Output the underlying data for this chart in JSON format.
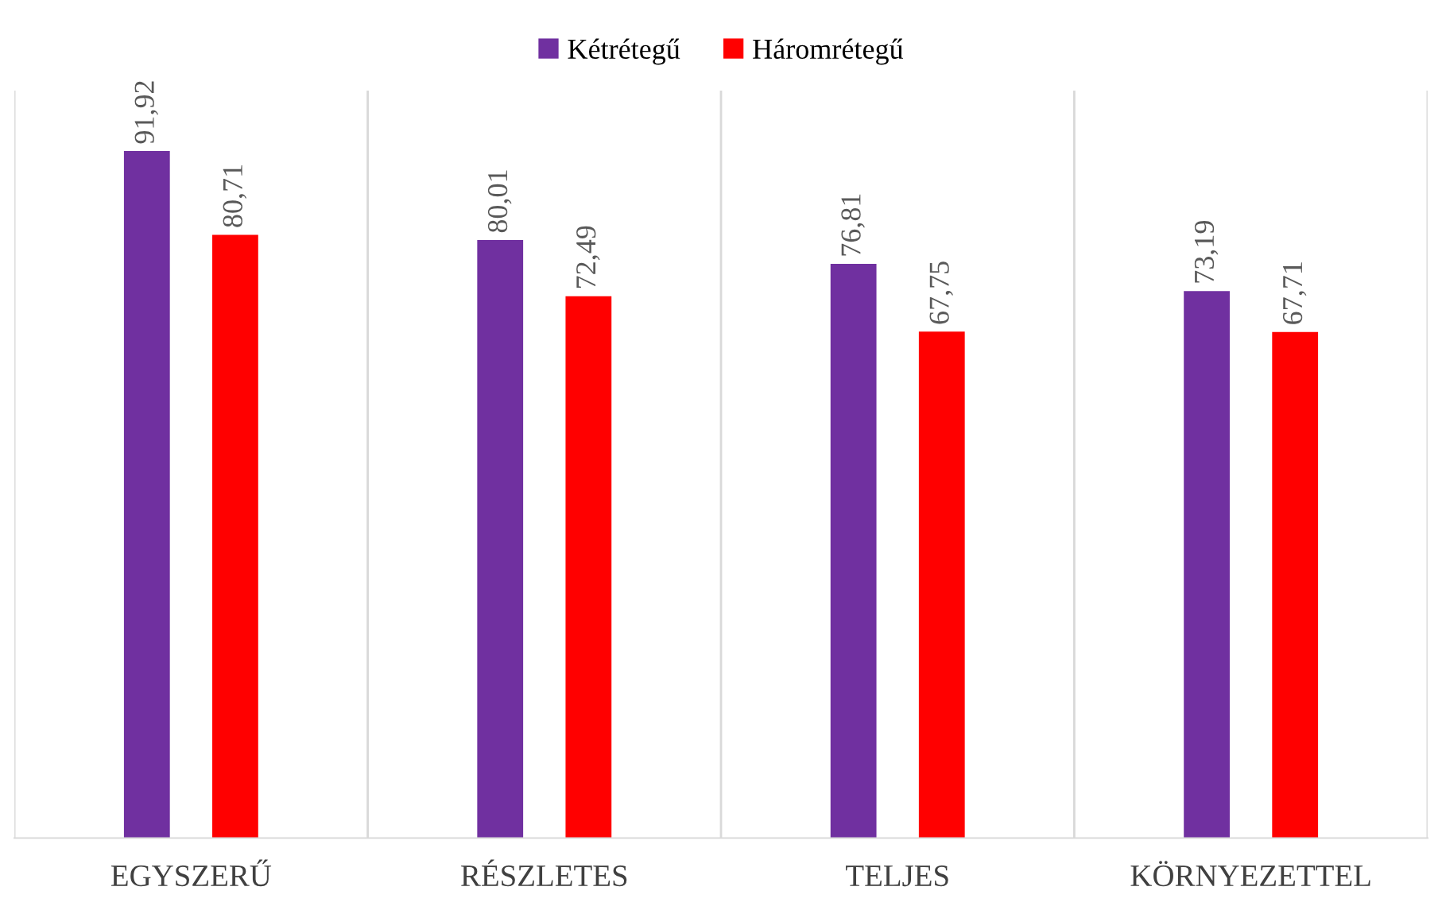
{
  "chart_data": {
    "type": "bar",
    "categories": [
      "EGYSZERŰ",
      "RÉSZLETES",
      "TELJES",
      "KÖRNYEZETTEL"
    ],
    "series": [
      {
        "name": "Kétrétegű",
        "color": "#7030a0",
        "values": [
          91.92,
          80.01,
          76.81,
          73.19
        ],
        "value_labels": [
          "91,92",
          "80,01",
          "76,81",
          "73,19"
        ]
      },
      {
        "name": "Háromrétegű",
        "color": "#ff0000",
        "values": [
          80.71,
          72.49,
          67.75,
          67.71
        ],
        "value_labels": [
          "80,71",
          "72,49",
          "67,75",
          "67,71"
        ]
      }
    ],
    "ylim": [
      0,
      100
    ],
    "grid": "x",
    "legend": "top",
    "tick_labels": "x"
  }
}
